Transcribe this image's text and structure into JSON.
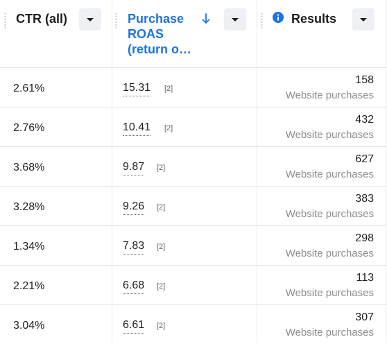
{
  "columns": {
    "ctr": {
      "label": "CTR (all)"
    },
    "roas": {
      "label_lines": [
        "Purchase",
        "ROAS",
        "(return o…"
      ]
    },
    "results": {
      "label": "Results"
    }
  },
  "rows": [
    {
      "ctr": "2.61%",
      "roas": "15.31",
      "roas_note": "[2]",
      "results": "158",
      "results_sub": "Website purchases"
    },
    {
      "ctr": "2.76%",
      "roas": "10.41",
      "roas_note": "[2]",
      "results": "432",
      "results_sub": "Website purchases"
    },
    {
      "ctr": "3.68%",
      "roas": "9.87",
      "roas_note": "[2]",
      "results": "627",
      "results_sub": "Website purchases"
    },
    {
      "ctr": "3.28%",
      "roas": "9.26",
      "roas_note": "[2]",
      "results": "383",
      "results_sub": "Website purchases"
    },
    {
      "ctr": "1.34%",
      "roas": "7.83",
      "roas_note": "[2]",
      "results": "298",
      "results_sub": "Website purchases"
    },
    {
      "ctr": "2.21%",
      "roas": "6.68",
      "roas_note": "[2]",
      "results": "113",
      "results_sub": "Website purchases"
    },
    {
      "ctr": "3.04%",
      "roas": "6.61",
      "roas_note": "[2]",
      "results": "307",
      "results_sub": "Website purchases"
    }
  ],
  "icons": {
    "sort": "arrow-down-icon",
    "menu": "caret-down-icon",
    "info": "info-icon",
    "resize": "column-resize-handle"
  },
  "colors": {
    "accent": "#1b74e4",
    "border": "#e4e6eb",
    "muted": "#8a8d91"
  }
}
